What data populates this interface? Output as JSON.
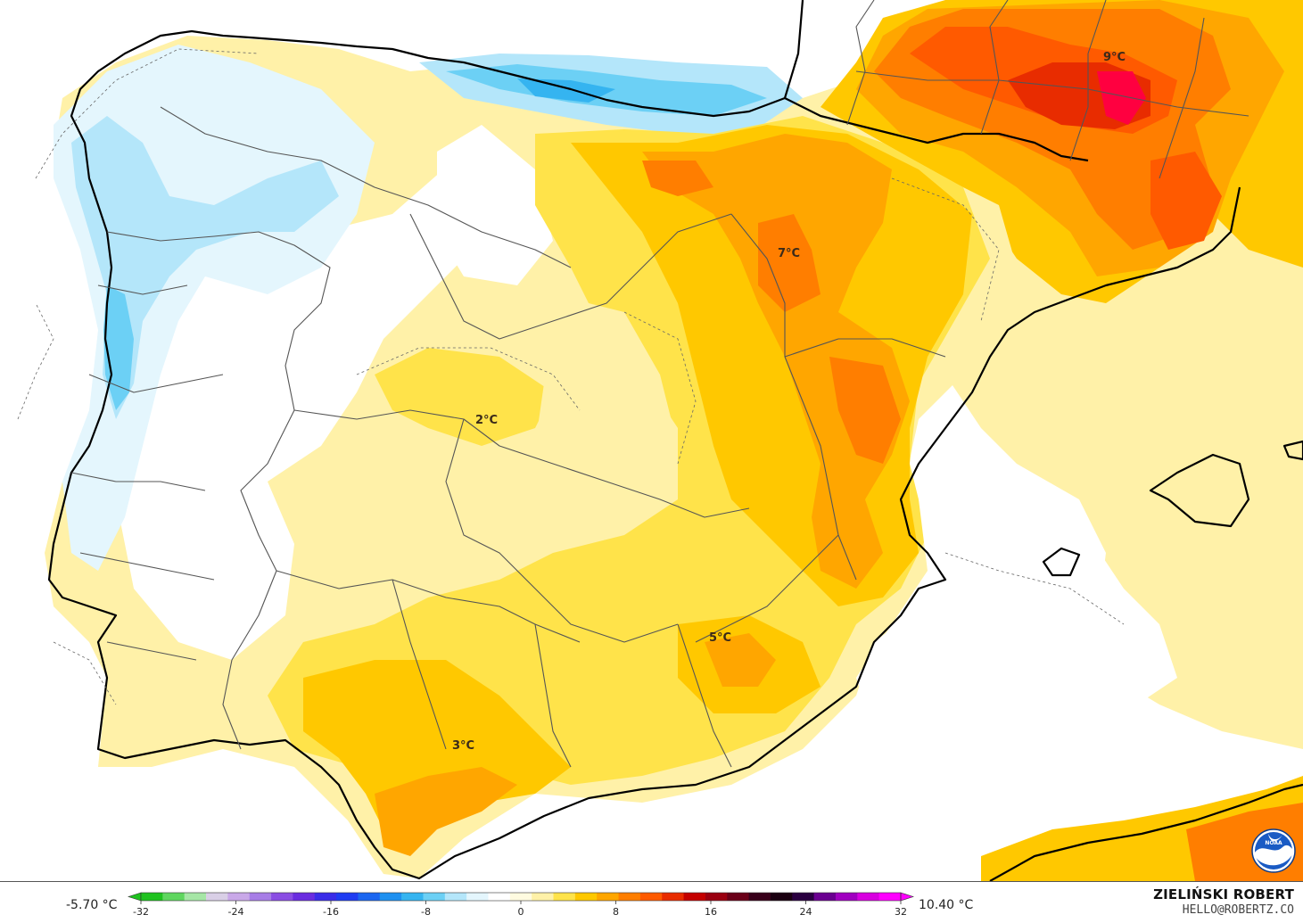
{
  "map": {
    "labels": [
      {
        "id": "north-europe-max",
        "text": "9°C"
      },
      {
        "id": "aragon-max",
        "text": "7°C"
      },
      {
        "id": "central-spain",
        "text": "2°C"
      },
      {
        "id": "murcia",
        "text": "5°C"
      },
      {
        "id": "andalusia",
        "text": "3°C"
      }
    ]
  },
  "legend": {
    "min_label": "-5.70 °C",
    "max_label": "10.40 °C",
    "ticks": [
      "-32",
      "-24",
      "-16",
      "-8",
      "0",
      "8",
      "16",
      "24",
      "32"
    ],
    "colors": [
      "#1fc21f",
      "#5fd65f",
      "#a6e6a6",
      "#d9cfe6",
      "#c9a8e8",
      "#a77de6",
      "#8a4de3",
      "#6a2ce0",
      "#3a2ce8",
      "#1f3cf2",
      "#1b66f0",
      "#1e90f0",
      "#35b4f0",
      "#6cd0f5",
      "#b4e6fa",
      "#e4f6fd",
      "#ffffff",
      "#fffbe0",
      "#fff1a8",
      "#ffe34a",
      "#ffc800",
      "#ffa600",
      "#ff7e00",
      "#ff5a00",
      "#e82c00",
      "#c40000",
      "#9a0010",
      "#6a0018",
      "#38001a",
      "#1a0010",
      "#2a0040",
      "#6a0090",
      "#a000c0",
      "#d800e0",
      "#ff00ff"
    ]
  },
  "credit": {
    "name": "ZIELIŃSKI ROBERT",
    "email": "HELLO@ROBERTZ.CO"
  },
  "logo": {
    "text": "NOAA"
  },
  "palette": {
    "sea_white": "#ffffff",
    "cold_light": "#e4f6fd",
    "cold": "#b4e6fa",
    "cold_mid": "#6cd0f5",
    "cold_deep": "#35b4f0",
    "warm_pale": "#fff1a8",
    "warm": "#ffe34a",
    "warm_gold": "#ffc800",
    "warm_orange": "#ffa600",
    "hot": "#ff7e00",
    "hotter": "#ff5a00",
    "hottest": "#e82c00",
    "peak": "#ff0040"
  }
}
